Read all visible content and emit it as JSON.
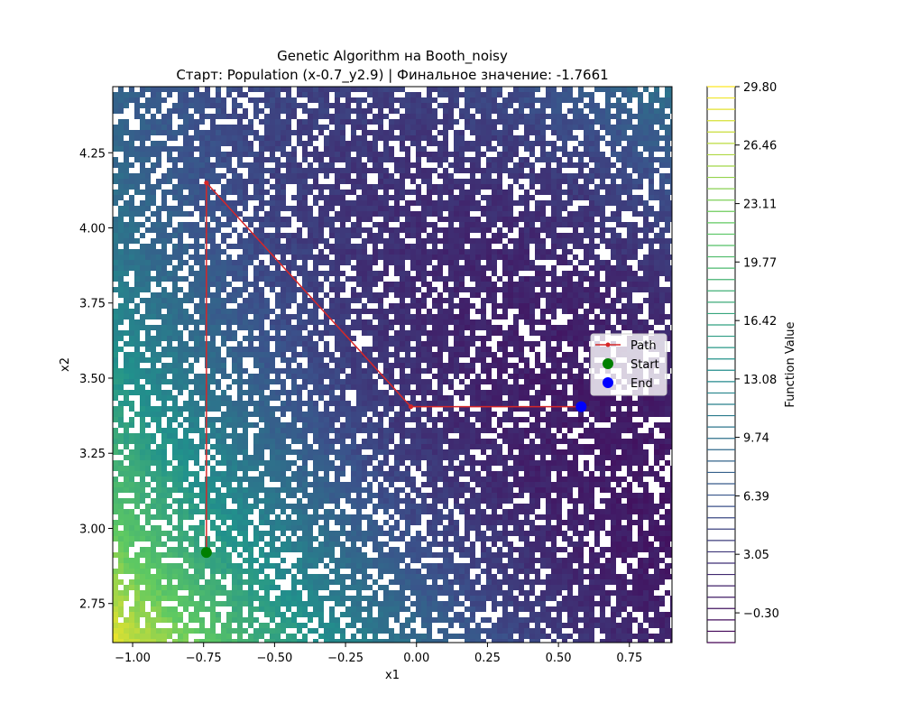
{
  "title": {
    "line1": "Genetic Algorithm на Booth_noisy",
    "line2": "Старт: Population (x-0.7_y2.9) | Финальное значение: -1.7661"
  },
  "axes": {
    "xlabel": "x1",
    "ylabel": "x2",
    "xlim": [
      -1.07,
      0.9
    ],
    "ylim": [
      2.62,
      4.47
    ],
    "xticks": [
      -1.0,
      -0.75,
      -0.5,
      -0.25,
      0.0,
      0.25,
      0.5,
      0.75
    ],
    "xtick_labels": [
      "−1.00",
      "−0.75",
      "−0.50",
      "−0.25",
      "0.00",
      "0.25",
      "0.50",
      "0.75"
    ],
    "yticks": [
      2.75,
      3.0,
      3.25,
      3.5,
      3.75,
      4.0,
      4.25
    ],
    "ytick_labels": [
      "2.75",
      "3.00",
      "3.25",
      "3.50",
      "3.75",
      "4.00",
      "4.25"
    ]
  },
  "colorbar": {
    "label": "Function Value",
    "range": [
      -2.0,
      29.8
    ],
    "ticks": [
      29.8,
      26.46,
      23.11,
      19.77,
      16.42,
      13.08,
      9.74,
      6.39,
      3.05,
      -0.3
    ],
    "tick_labels": [
      "29.80",
      "26.46",
      "23.11",
      "19.77",
      "16.42",
      "13.08",
      "9.74",
      "6.39",
      "3.05",
      "−0.30"
    ],
    "colormap": "viridis"
  },
  "legend": {
    "items": [
      {
        "label": "Path",
        "color": "#d62728",
        "kind": "line-marker"
      },
      {
        "label": "Start",
        "color": "#008000",
        "kind": "circle"
      },
      {
        "label": "End",
        "color": "#0000ff",
        "kind": "circle"
      }
    ],
    "placement": "right"
  },
  "chart_data": {
    "type": "line",
    "background_type": "contour",
    "path": {
      "x": [
        -0.74,
        -0.74,
        -0.02,
        0.58
      ],
      "y": [
        2.92,
        4.15,
        3.405,
        3.405
      ]
    },
    "start": {
      "x": -0.74,
      "y": 2.92
    },
    "end": {
      "x": 0.58,
      "y": 3.405
    },
    "xlabel": "x1",
    "ylabel": "x2",
    "xlim": [
      -1.07,
      0.9
    ],
    "ylim": [
      2.62,
      4.47
    ],
    "grid": false
  }
}
